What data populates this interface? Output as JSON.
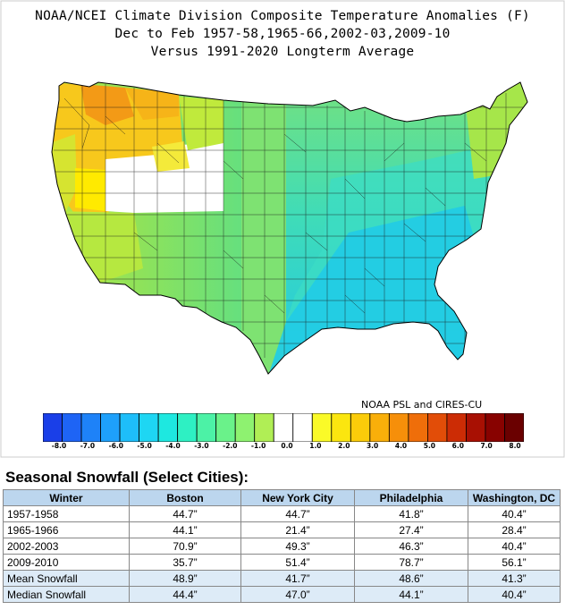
{
  "map": {
    "title_lines": [
      "NOAA/NCEI Climate Division Composite Temperature Anomalies (F)",
      "Dec to Feb  1957-58,1965-66,2002-03,2009-10",
      "Versus 1991-2020 Longterm Average"
    ],
    "credit": "NOAA PSL and CIRES-CU",
    "colorbar": {
      "colors": [
        "#1a3fe8",
        "#1e64f5",
        "#1e82f8",
        "#1ea0fb",
        "#1ebefa",
        "#1ed6f3",
        "#1ee8e0",
        "#2ef0c3",
        "#4cf2a6",
        "#6af28a",
        "#8ef270",
        "#b0ee55",
        "#ffffff",
        "#ffffff",
        "#fafa28",
        "#fbe60f",
        "#fbcc0a",
        "#f9af0a",
        "#f68f0a",
        "#ef6e0a",
        "#e24d08",
        "#cc2c05",
        "#a81003",
        "#880200",
        "#6a0000"
      ],
      "tick_labels": [
        "-8.0",
        "-7.0",
        "-6.0",
        "-5.0",
        "-4.0",
        "-3.0",
        "-2.0",
        "-1.0",
        "0.0",
        "1.0",
        "2.0",
        "3.0",
        "4.0",
        "5.0",
        "6.0",
        "7.0",
        "8.0"
      ]
    },
    "anomaly_regions": [
      {
        "region": "northwest",
        "anomaly_f": 1.5,
        "color": "#f7c81c"
      },
      {
        "region": "pacific-northwest-interior",
        "anomaly_f": 3.5,
        "color": "#f39a16"
      },
      {
        "region": "great-basin",
        "anomaly_f": 0.0,
        "color": "#ffffff"
      },
      {
        "region": "california-southwest",
        "anomaly_f": -1.0,
        "color": "#9fe246"
      },
      {
        "region": "plains",
        "anomaly_f": -2.0,
        "color": "#5fe08e"
      },
      {
        "region": "midwest",
        "anomaly_f": -1.5,
        "color": "#78e27a"
      },
      {
        "region": "southeast",
        "anomaly_f": -3.5,
        "color": "#1ec6ea"
      },
      {
        "region": "northeast",
        "anomaly_f": -1.0,
        "color": "#9be24d"
      }
    ]
  },
  "snowfall": {
    "title": "Seasonal Snowfall (Select Cities):",
    "headers": [
      "Winter",
      "Boston",
      "New York City",
      "Philadelphia",
      "Washington, DC"
    ],
    "rows": [
      {
        "label": "1957-1958",
        "values": [
          "44.7”",
          "44.7”",
          "41.8”",
          "40.4”"
        ]
      },
      {
        "label": "1965-1966",
        "values": [
          "44.1”",
          "21.4”",
          "27.4”",
          "28.4”"
        ]
      },
      {
        "label": "2002-2003",
        "values": [
          "70.9”",
          "49.3”",
          "46.3”",
          "40.4”"
        ]
      },
      {
        "label": "2009-2010",
        "values": [
          "35.7”",
          "51.4”",
          "78.7”",
          "56.1”"
        ]
      },
      {
        "label": "Mean Snowfall",
        "values": [
          "48.9”",
          "41.7”",
          "48.6”",
          "41.3”"
        ]
      },
      {
        "label": "Median Snowfall",
        "values": [
          "44.4”",
          "47.0”",
          "44.1”",
          "40.4”"
        ]
      }
    ]
  }
}
